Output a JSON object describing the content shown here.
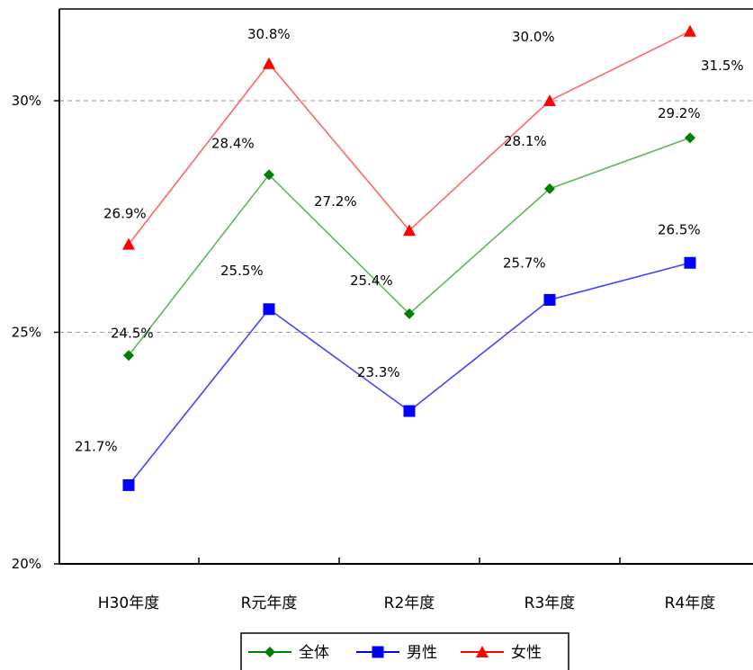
{
  "chart_data": {
    "type": "line",
    "title": "",
    "xlabel": "",
    "ylabel": "",
    "categories": [
      "H30年度",
      "R元年度",
      "R2年度",
      "R3年度",
      "R4年度"
    ],
    "ylim": [
      20,
      32
    ],
    "yticks": [
      {
        "value": 20,
        "label": "20%"
      },
      {
        "value": 25,
        "label": "25%"
      },
      {
        "value": 30,
        "label": "30%"
      }
    ],
    "grid": {
      "horizontal": true,
      "style": "dashed",
      "values": [
        25,
        30
      ]
    },
    "legend_position": "bottom",
    "series": [
      {
        "name": "全体",
        "color": "#008000",
        "line_color": "#5cb85c",
        "marker": "diamond",
        "values": [
          24.5,
          28.4,
          25.4,
          28.1,
          29.2
        ],
        "labels": [
          "24.5%",
          "28.4%",
          "25.4%",
          "28.1%",
          "29.2%"
        ]
      },
      {
        "name": "男性",
        "color": "#0000ff",
        "line_color": "#4444ff",
        "marker": "square",
        "values": [
          21.7,
          25.5,
          23.3,
          25.7,
          26.5
        ],
        "labels": [
          "21.7%",
          "25.5%",
          "23.3%",
          "25.7%",
          "26.5%"
        ]
      },
      {
        "name": "女性",
        "color": "#ff0000",
        "line_color": "#ff6666",
        "marker": "triangle",
        "values": [
          26.9,
          30.8,
          27.2,
          30.0,
          31.5
        ],
        "labels": [
          "26.9%",
          "30.8%",
          "27.2%",
          "30.0%",
          "31.5%"
        ]
      }
    ]
  }
}
